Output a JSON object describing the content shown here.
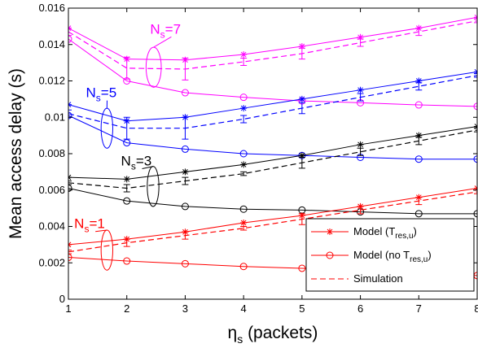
{
  "chart_data": {
    "type": "line",
    "title": "",
    "xlabel_main": "η",
    "xlabel_sub": "s",
    "xlabel_rest": " (packets)",
    "ylabel": "Mean access delay (s)",
    "xlim": [
      1,
      8
    ],
    "ylim": [
      0,
      0.016
    ],
    "xticks": [
      1,
      2,
      3,
      4,
      5,
      6,
      7,
      8
    ],
    "yticks": [
      0,
      0.002,
      0.004,
      0.006,
      0.008,
      0.01,
      0.012,
      0.014,
      0.016
    ],
    "ytick_labels": [
      "0",
      "0.002",
      "0.004",
      "0.006",
      "0.008",
      "0.01",
      "0.012",
      "0.014",
      "0.016"
    ],
    "grid": false,
    "legend_position": "bottom-right",
    "legend": [
      {
        "style": "model-tres",
        "main": "Model (T",
        "sub": "res,u",
        "close": ")"
      },
      {
        "style": "model-notres",
        "main": "Model (no T",
        "sub": "res,u",
        "close": ")"
      },
      {
        "style": "simulation",
        "main": "Simulation",
        "sub": "",
        "close": ""
      }
    ],
    "groups": [
      {
        "label_main": "N",
        "label_sub": "s",
        "label_rest": "=7",
        "color": "#ff00ff",
        "model_tres": [
          0.0149,
          0.0132,
          0.01315,
          0.01345,
          0.0139,
          0.0144,
          0.0149,
          0.0155
        ],
        "model_notres": [
          0.0143,
          0.012,
          0.01135,
          0.0111,
          0.0109,
          0.0108,
          0.01068,
          0.0106
        ],
        "simulation": [
          0.0147,
          0.0127,
          0.01265,
          0.01305,
          0.0135,
          0.0141,
          0.0147,
          0.0153
        ],
        "sim_err": [
          0.0002,
          0.0006,
          0.0006,
          0.0002,
          0.0003,
          0.0002,
          0.0002,
          0.0001
        ],
        "annotation": {
          "x": 2.4,
          "y": 0.0146
        },
        "ellipse": {
          "x": 2.46,
          "y": 0.01275,
          "rx": 0.13,
          "ry": 0.0011
        }
      },
      {
        "label_main": "N",
        "label_sub": "s",
        "label_rest": "=5",
        "color": "#0000ff",
        "model_tres": [
          0.0107,
          0.0098,
          0.01,
          0.0105,
          0.011,
          0.0115,
          0.012,
          0.0125
        ],
        "model_notres": [
          0.0101,
          0.0086,
          0.00825,
          0.008,
          0.0079,
          0.0078,
          0.0077,
          0.0077
        ],
        "simulation": [
          0.0102,
          0.0094,
          0.0094,
          0.0099,
          0.0105,
          0.0111,
          0.0117,
          0.0123
        ],
        "sim_err": [
          0.0002,
          0.0006,
          0.0006,
          0.0002,
          0.0003,
          0.0002,
          0.0002,
          0.0001
        ],
        "annotation": {
          "x": 1.3,
          "y": 0.0111
        },
        "ellipse": {
          "x": 1.66,
          "y": 0.0094,
          "rx": 0.1,
          "ry": 0.0011
        }
      },
      {
        "label_main": "N",
        "label_sub": "s",
        "label_rest": "=3",
        "color": "#000000",
        "model_tres": [
          0.0067,
          0.0066,
          0.007,
          0.0074,
          0.0079,
          0.0085,
          0.009,
          0.0095
        ],
        "model_notres": [
          0.0061,
          0.0054,
          0.0051,
          0.00495,
          0.0049,
          0.0048,
          0.0047,
          0.0047
        ],
        "simulation": [
          0.0064,
          0.0061,
          0.0065,
          0.0069,
          0.0075,
          0.0081,
          0.0087,
          0.0093
        ],
        "sim_err": [
          0.0001,
          0.0002,
          0.0002,
          0.0001,
          0.0003,
          0.0002,
          0.0002,
          0.0001
        ],
        "annotation": {
          "x": 1.9,
          "y": 0.00735
        },
        "ellipse": {
          "x": 2.45,
          "y": 0.0062,
          "rx": 0.1,
          "ry": 0.0011
        }
      },
      {
        "label_main": "N",
        "label_sub": "s",
        "label_rest": "=1",
        "color": "#ff0000",
        "model_tres": [
          0.003,
          0.0033,
          0.0037,
          0.0042,
          0.0046,
          0.0051,
          0.0056,
          0.0061
        ],
        "model_notres": [
          0.0023,
          0.0021,
          0.00195,
          0.0018,
          0.0017,
          0.0016,
          0.0015,
          0.0013
        ],
        "simulation": [
          0.0026,
          0.0031,
          0.0035,
          0.0039,
          0.0044,
          0.0049,
          0.0054,
          0.0059
        ],
        "sim_err": [
          0.0001,
          0.0002,
          0.0002,
          0.0001,
          0.0003,
          0.0002,
          0.0002,
          0.0001
        ],
        "annotation": {
          "x": 1.1,
          "y": 0.0039
        },
        "ellipse": {
          "x": 1.66,
          "y": 0.0027,
          "rx": 0.1,
          "ry": 0.0011
        }
      }
    ]
  }
}
